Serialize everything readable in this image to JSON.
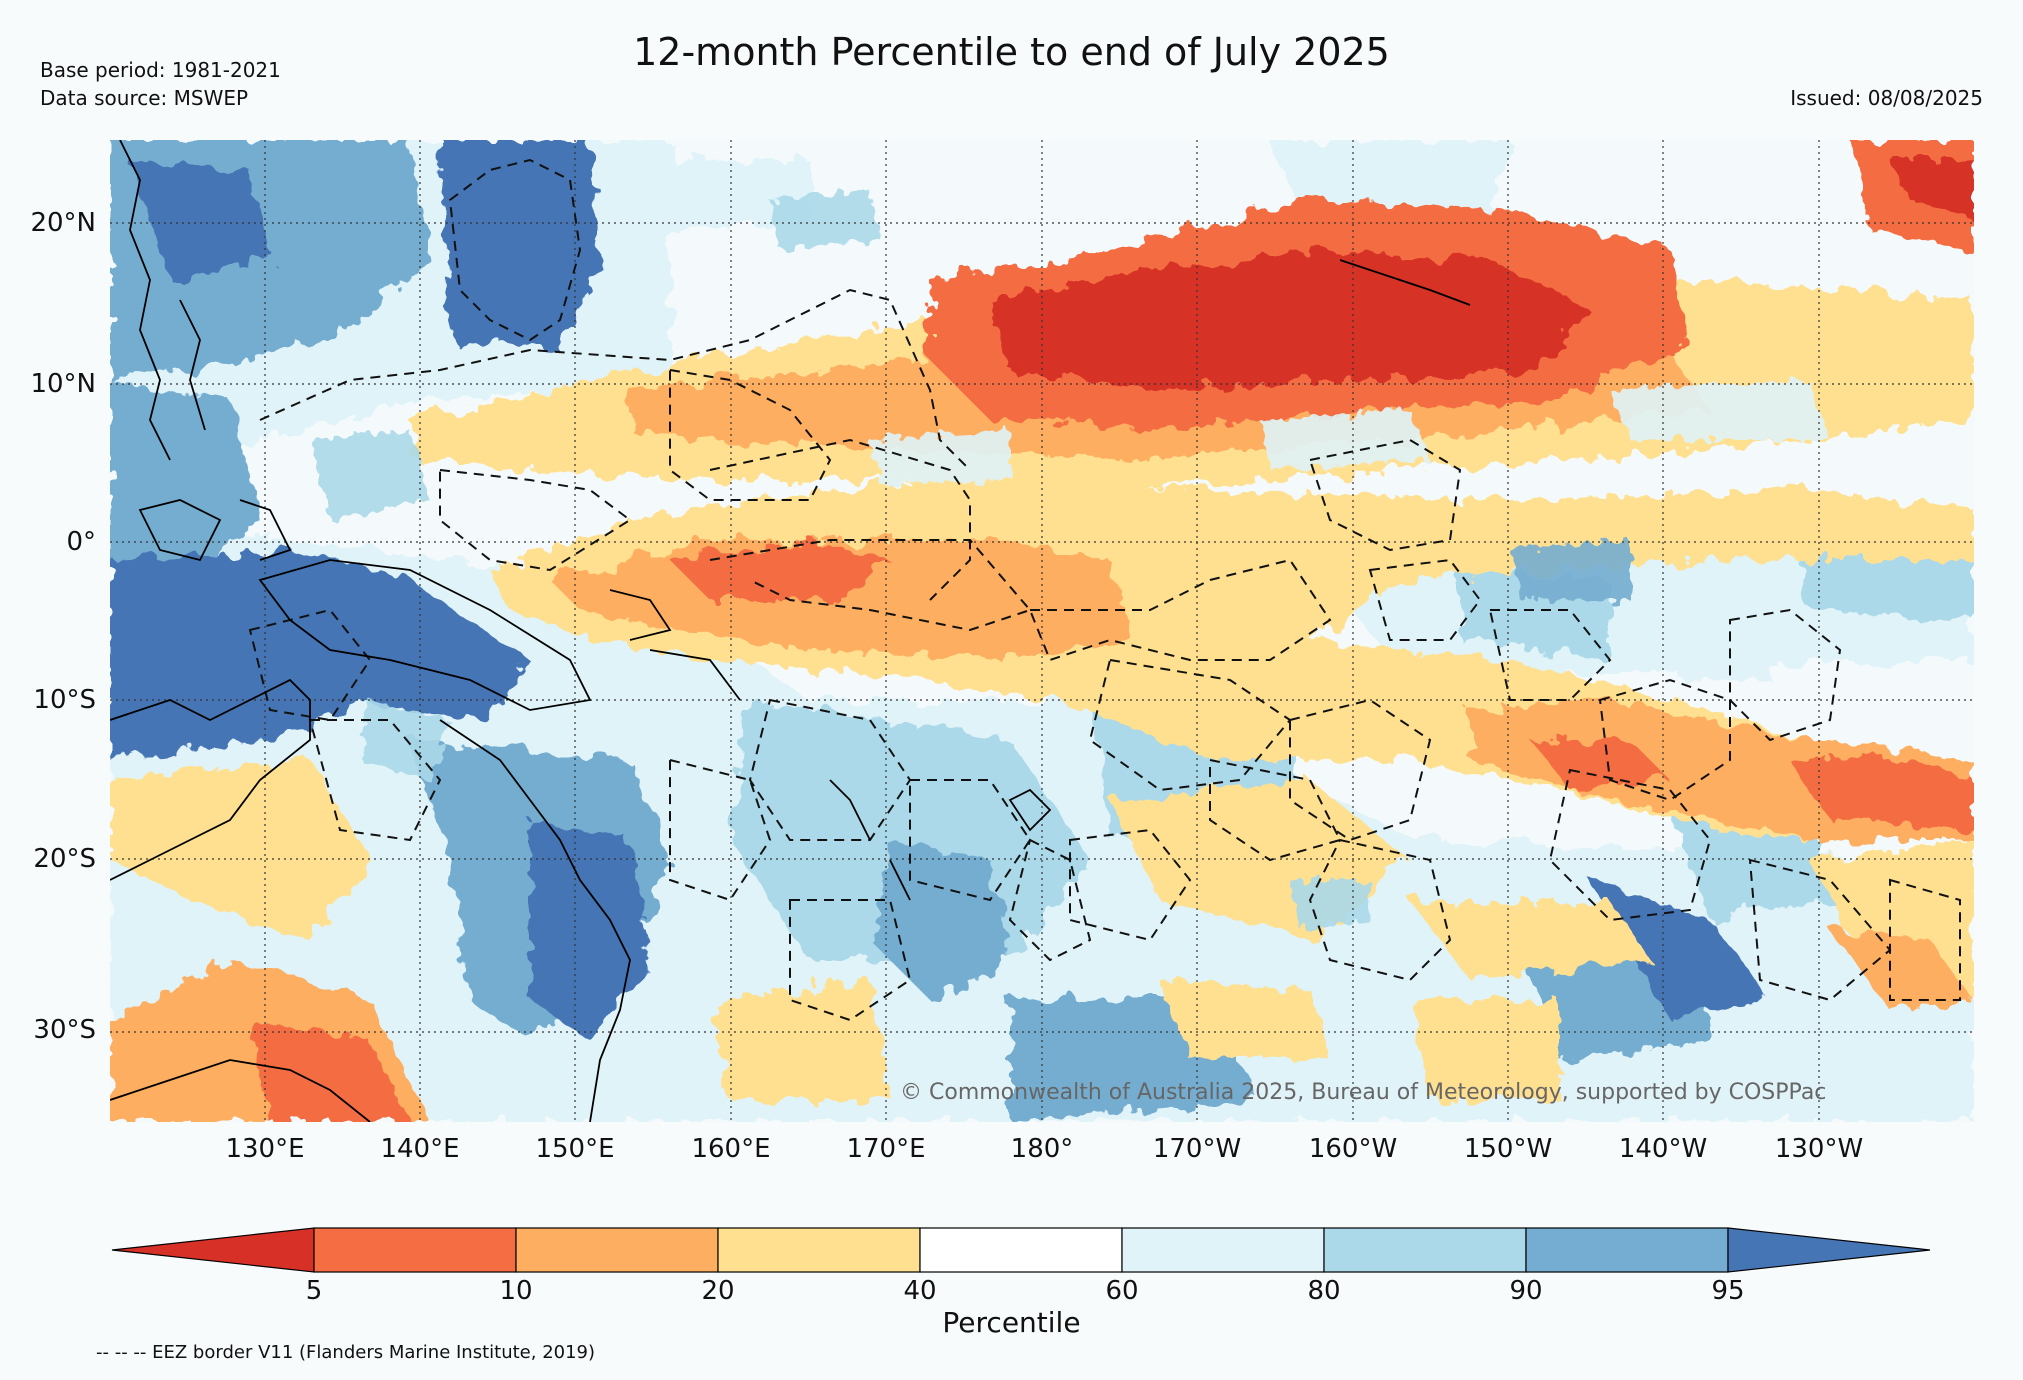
{
  "header": {
    "title": "12-month Percentile to end of July 2025",
    "base_period": "Base period: 1981-2021",
    "data_source": "Data source: MSWEP",
    "issued": "Issued: 08/08/2025"
  },
  "map": {
    "lat_labels": [
      "20°N",
      "10°N",
      "0°",
      "10°S",
      "20°S",
      "30°S"
    ],
    "lon_labels": [
      "130°E",
      "140°E",
      "150°E",
      "160°E",
      "170°E",
      "180°",
      "170°W",
      "160°W",
      "150°W",
      "140°W",
      "130°W"
    ],
    "copyright": "© Commonwealth of Australia 2025, Bureau of Meteorology, supported by COSPPac"
  },
  "legend": {
    "ticks": [
      "5",
      "10",
      "20",
      "40",
      "60",
      "80",
      "90",
      "95"
    ],
    "label": "Percentile",
    "colors": [
      "#d73027",
      "#f46d43",
      "#fdae61",
      "#fee090",
      "#ffffff",
      "#e0f3f8",
      "#abd9e9",
      "#74add1",
      "#4575b4"
    ]
  },
  "footnote": "-- -- -- EEZ border V11 (Flanders Marine Institute, 2019)"
}
